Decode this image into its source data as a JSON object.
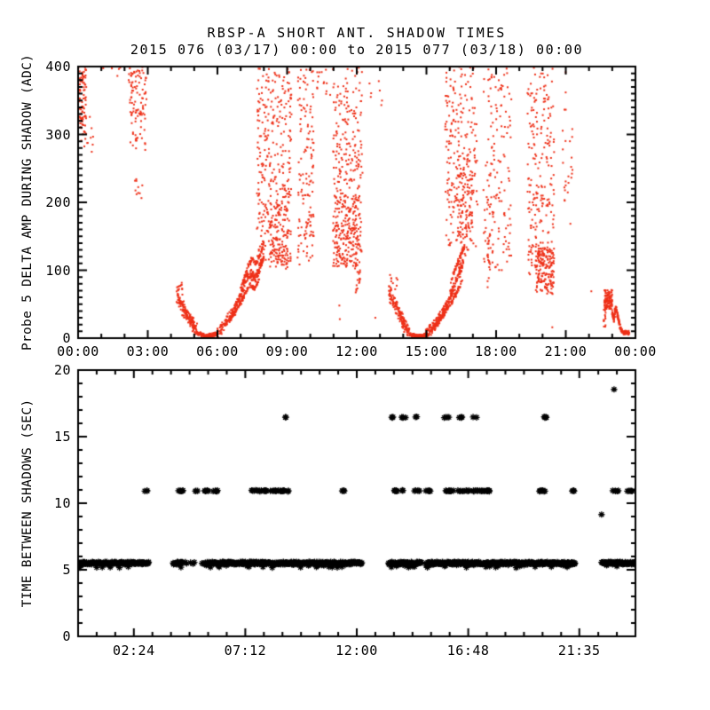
{
  "title": {
    "line1": "RBSP-A SHORT ANT. SHADOW TIMES",
    "line2": "2015 076 (03/17) 00:00 to 2015 077 (03/18) 00:00"
  },
  "colors": {
    "background": "#ffffff",
    "axis": "#000000",
    "top_scatter": "#ee3018",
    "bottom_scatter": "#000000"
  },
  "chart_data": [
    {
      "type": "scatter",
      "panel": "top",
      "ylabel": "Probe 5 DELTA AMP DURING SHADOW (ADC)",
      "marker": "dot",
      "color": "#ee3018",
      "xlim": [
        0,
        24
      ],
      "ylim": [
        0,
        400
      ],
      "x_minor_step_h": 1,
      "y_minor_step": 10,
      "xticks": [
        {
          "h": 0,
          "label": "00:00"
        },
        {
          "h": 3,
          "label": "03:00"
        },
        {
          "h": 6,
          "label": "06:00"
        },
        {
          "h": 9,
          "label": "09:00"
        },
        {
          "h": 12,
          "label": "12:00"
        },
        {
          "h": 15,
          "label": "15:00"
        },
        {
          "h": 18,
          "label": "18:00"
        },
        {
          "h": 21,
          "label": "21:00"
        },
        {
          "h": 24,
          "label": "00:00"
        }
      ],
      "yticks": [
        {
          "v": 0,
          "label": "0"
        },
        {
          "v": 100,
          "label": "100"
        },
        {
          "v": 200,
          "label": "200"
        },
        {
          "v": 300,
          "label": "300"
        },
        {
          "v": 400,
          "label": "400"
        }
      ],
      "clusters": [
        [
          0.0,
          0.35,
          300,
          400,
          85
        ],
        [
          0.0,
          0.65,
          268,
          332,
          18
        ],
        [
          0.9,
          2.1,
          383,
          400,
          5
        ],
        [
          2.18,
          2.95,
          328,
          400,
          75
        ],
        [
          2.25,
          2.9,
          268,
          335,
          28
        ],
        [
          2.4,
          2.8,
          205,
          270,
          10
        ],
        [
          4.2,
          4.5,
          62,
          82,
          14
        ],
        [
          7.7,
          9.2,
          110,
          400,
          320
        ],
        [
          8.25,
          9.05,
          100,
          200,
          120
        ],
        [
          9.45,
          10.15,
          105,
          400,
          140
        ],
        [
          10.25,
          10.9,
          345,
          400,
          14
        ],
        [
          10.97,
          12.25,
          100,
          400,
          290
        ],
        [
          11.05,
          12.1,
          105,
          210,
          150
        ],
        [
          11.95,
          12.15,
          60,
          112,
          18
        ],
        [
          12.45,
          13.3,
          340,
          400,
          7
        ],
        [
          13.35,
          13.75,
          70,
          96,
          12
        ],
        [
          15.8,
          17.2,
          130,
          400,
          230
        ],
        [
          16.3,
          17.0,
          140,
          265,
          90
        ],
        [
          17.45,
          18.7,
          100,
          400,
          150
        ],
        [
          17.62,
          17.75,
          75,
          165,
          22
        ],
        [
          19.35,
          20.5,
          90,
          400,
          220
        ],
        [
          19.7,
          20.5,
          65,
          133,
          170
        ],
        [
          20.85,
          21.3,
          150,
          400,
          26
        ],
        [
          22.66,
          23.0,
          43,
          71,
          110
        ],
        [
          22.63,
          22.72,
          8,
          45,
          12
        ]
      ],
      "curves": [
        {
          "pts": [
            [
              4.25,
              62
            ],
            [
              4.5,
              45
            ],
            [
              4.72,
              32
            ],
            [
              4.92,
              20
            ],
            [
              5.12,
              13
            ]
          ],
          "n": 150,
          "jx": 0.05,
          "jy": 12
        },
        {
          "pts": [
            [
              5.15,
              8
            ],
            [
              5.45,
              4
            ],
            [
              5.75,
              4
            ],
            [
              5.98,
              7
            ]
          ],
          "n": 150,
          "jx": 0.04,
          "jy": 3.5
        },
        {
          "pts": [
            [
              5.98,
              8
            ],
            [
              6.25,
              17
            ],
            [
              6.5,
              29
            ],
            [
              6.75,
              45
            ],
            [
              7.0,
              63
            ],
            [
              7.25,
              85
            ],
            [
              7.45,
              95
            ],
            [
              7.62,
              90
            ],
            [
              7.82,
              102
            ],
            [
              8.0,
              120
            ]
          ],
          "n": 260,
          "jx": 0.03,
          "jy": 10
        },
        {
          "pts": [
            [
              6.5,
              24
            ],
            [
              6.75,
              37
            ],
            [
              7.0,
              52
            ],
            [
              7.2,
              66
            ],
            [
              7.4,
              78
            ],
            [
              7.6,
              73
            ],
            [
              7.8,
              87
            ]
          ],
          "n": 110,
          "jx": 0.02,
          "jy": 4
        },
        {
          "pts": [
            [
              7.0,
              72
            ],
            [
              7.2,
              93
            ],
            [
              7.35,
              108
            ],
            [
              7.5,
              118
            ],
            [
              7.65,
              109
            ],
            [
              7.85,
              123
            ],
            [
              8.0,
              142
            ]
          ],
          "n": 80,
          "jx": 0.02,
          "jy": 5
        },
        {
          "pts": [
            [
              13.4,
              66
            ],
            [
              13.65,
              48
            ],
            [
              13.9,
              32
            ],
            [
              14.1,
              18
            ],
            [
              14.3,
              9
            ]
          ],
          "n": 140,
          "jx": 0.05,
          "jy": 12
        },
        {
          "pts": [
            [
              14.3,
              6
            ],
            [
              14.55,
              3
            ],
            [
              14.82,
              3
            ],
            [
              15.02,
              5
            ]
          ],
          "n": 140,
          "jx": 0.04,
          "jy": 3
        },
        {
          "pts": [
            [
              14.95,
              6
            ],
            [
              15.2,
              13
            ],
            [
              15.45,
              23
            ],
            [
              15.7,
              37
            ],
            [
              15.95,
              55
            ],
            [
              16.2,
              76
            ],
            [
              16.45,
              100
            ],
            [
              16.68,
              120
            ]
          ],
          "n": 250,
          "jx": 0.03,
          "jy": 10
        },
        {
          "pts": [
            [
              15.35,
              18
            ],
            [
              15.65,
              30
            ],
            [
              15.95,
              45
            ],
            [
              16.25,
              64
            ],
            [
              16.55,
              86
            ]
          ],
          "n": 90,
          "jx": 0.02,
          "jy": 4
        },
        {
          "pts": [
            [
              16.05,
              82
            ],
            [
              16.25,
              102
            ],
            [
              16.45,
              120
            ],
            [
              16.65,
              136
            ]
          ],
          "n": 60,
          "jx": 0.02,
          "jy": 5
        },
        {
          "pts": [
            [
              23.0,
              40
            ],
            [
              23.07,
              27
            ],
            [
              23.15,
              46
            ],
            [
              23.25,
              30
            ],
            [
              23.35,
              14
            ],
            [
              23.5,
              8
            ],
            [
              23.72,
              7
            ]
          ],
          "n": 150,
          "jx": 0.03,
          "jy": 4
        }
      ],
      "singles": [
        [
          11.27,
          28
        ],
        [
          11.25,
          48
        ],
        [
          12.8,
          30
        ],
        [
          20.42,
          16
        ],
        [
          22.1,
          69
        ]
      ]
    },
    {
      "type": "scatter",
      "panel": "bottom",
      "ylabel": "TIME BETWEEN SHADOWS (SEC)",
      "marker": "asterisk",
      "color": "#000000",
      "xlim": [
        0,
        24
      ],
      "ylim": [
        0,
        20
      ],
      "x_minor_step_h": 0.8,
      "y_minor_step": 1,
      "xticks": [
        {
          "h": 2.4,
          "label": "02:24"
        },
        {
          "h": 7.2,
          "label": "07:12"
        },
        {
          "h": 12.0,
          "label": "12:00"
        },
        {
          "h": 16.8,
          "label": "16:48"
        },
        {
          "h": 21.5833,
          "label": "21:35"
        }
      ],
      "yticks": [
        {
          "v": 0,
          "label": "0"
        },
        {
          "v": 5,
          "label": "5"
        },
        {
          "v": 10,
          "label": "10"
        },
        {
          "v": 15,
          "label": "15"
        },
        {
          "v": 20,
          "label": "20"
        }
      ],
      "bands": [
        {
          "y": 5.5,
          "style": "dense",
          "step_h": 0.02,
          "segments": [
            [
              0,
              3.06
            ],
            [
              4.09,
              4.51
            ],
            [
              5.46,
              12.23
            ],
            [
              13.37,
              14.79
            ],
            [
              14.98,
              21.4
            ],
            [
              22.54,
              23.96
            ]
          ],
          "sparse_segments": [
            [
              4.51,
              5.42
            ]
          ]
        },
        {
          "y": 10.93,
          "style": "clumps",
          "per_hour": 20,
          "clusters": [
            [
              2.87,
              3.02
            ],
            [
              4.28,
              4.59
            ],
            [
              5.02,
              5.16
            ],
            [
              5.43,
              5.69
            ],
            [
              5.81,
              6.08
            ],
            [
              7.41,
              9.06
            ],
            [
              11.35,
              11.54
            ],
            [
              13.57,
              14.02
            ],
            [
              14.48,
              14.71
            ],
            [
              14.9,
              15.17
            ],
            [
              15.74,
              17.77
            ],
            [
              19.76,
              20.14
            ],
            [
              21.17,
              21.36
            ],
            [
              23.0,
              23.27
            ],
            [
              23.65,
              23.88
            ]
          ]
        },
        {
          "y": 16.45,
          "style": "clumps",
          "per_hour": 14,
          "clusters": [
            [
              8.92,
              8.98
            ],
            [
              13.45,
              13.64
            ],
            [
              13.83,
              14.1
            ],
            [
              14.48,
              14.62
            ],
            [
              15.74,
              16.01
            ],
            [
              16.32,
              16.58
            ],
            [
              17.0,
              17.16
            ],
            [
              19.95,
              20.21
            ]
          ]
        }
      ],
      "points": [
        [
          22.54,
          9.15
        ],
        [
          23.08,
          18.55
        ]
      ]
    }
  ]
}
